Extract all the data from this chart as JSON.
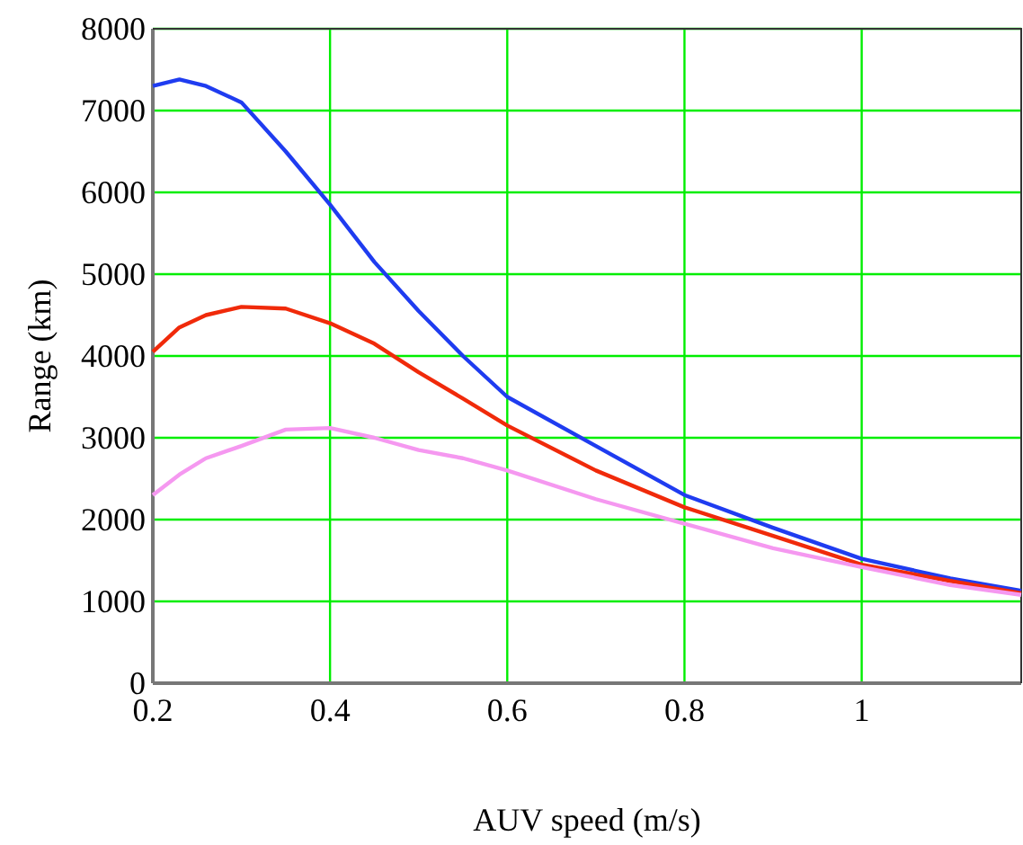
{
  "chart_data": {
    "type": "line",
    "xlabel": "AUV speed (m/s)",
    "ylabel": "Range (km)",
    "xlim": [
      0.2,
      1.18
    ],
    "ylim": [
      0,
      8000
    ],
    "xticks": [
      0.2,
      0.4,
      0.6,
      0.8,
      1
    ],
    "yticks": [
      0,
      1000,
      2000,
      3000,
      4000,
      5000,
      6000,
      7000,
      8000
    ],
    "grid": true,
    "x": [
      0.2,
      0.23,
      0.26,
      0.3,
      0.35,
      0.4,
      0.45,
      0.5,
      0.55,
      0.6,
      0.7,
      0.8,
      0.9,
      1.0,
      1.1,
      1.18
    ],
    "series": [
      {
        "color": "#1f3cf0",
        "values": [
          7300,
          7380,
          7300,
          7100,
          6500,
          5850,
          5150,
          4550,
          4000,
          3500,
          2900,
          2300,
          1900,
          1520,
          1280,
          1130
        ]
      },
      {
        "color": "#f02a0a",
        "values": [
          4050,
          4350,
          4500,
          4600,
          4580,
          4400,
          4150,
          3800,
          3480,
          3150,
          2600,
          2150,
          1800,
          1450,
          1250,
          1100
        ]
      },
      {
        "color": "#f598f0",
        "values": [
          2300,
          2550,
          2750,
          2900,
          3100,
          3120,
          3000,
          2850,
          2750,
          2600,
          2250,
          1950,
          1650,
          1420,
          1200,
          1080
        ]
      }
    ]
  }
}
